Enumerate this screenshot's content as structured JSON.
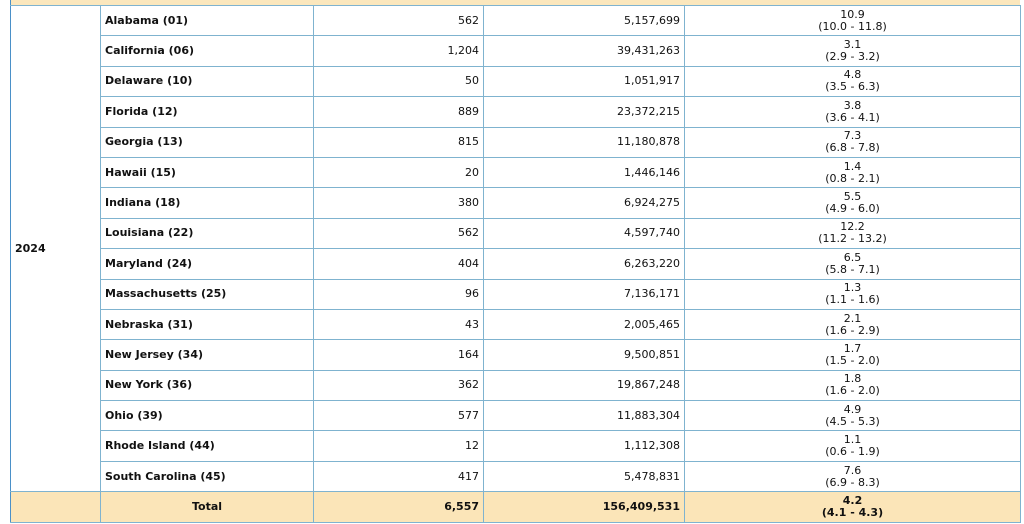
{
  "table": {
    "year": "2024",
    "rows": [
      [
        "Alabama (01)",
        "562",
        "5,157,699",
        "10.9",
        "(10.0 - 11.8)"
      ],
      [
        "California (06)",
        "1,204",
        "39,431,263",
        "3.1",
        "(2.9 - 3.2)"
      ],
      [
        "Delaware (10)",
        "50",
        "1,051,917",
        "4.8",
        "(3.5 - 6.3)"
      ],
      [
        "Florida (12)",
        "889",
        "23,372,215",
        "3.8",
        "(3.6 - 4.1)"
      ],
      [
        "Georgia (13)",
        "815",
        "11,180,878",
        "7.3",
        "(6.8 - 7.8)"
      ],
      [
        "Hawaii (15)",
        "20",
        "1,446,146",
        "1.4",
        "(0.8 - 2.1)"
      ],
      [
        "Indiana (18)",
        "380",
        "6,924,275",
        "5.5",
        "(4.9 - 6.0)"
      ],
      [
        "Louisiana (22)",
        "562",
        "4,597,740",
        "12.2",
        "(11.2 - 13.2)"
      ],
      [
        "Maryland (24)",
        "404",
        "6,263,220",
        "6.5",
        "(5.8 - 7.1)"
      ],
      [
        "Massachusetts (25)",
        "96",
        "7,136,171",
        "1.3",
        "(1.1 - 1.6)"
      ],
      [
        "Nebraska (31)",
        "43",
        "2,005,465",
        "2.1",
        "(1.6 - 2.9)"
      ],
      [
        "New Jersey (34)",
        "164",
        "9,500,851",
        "1.7",
        "(1.5 - 2.0)"
      ],
      [
        "New York (36)",
        "362",
        "19,867,248",
        "1.8",
        "(1.6 - 2.0)"
      ],
      [
        "Ohio (39)",
        "577",
        "11,883,304",
        "4.9",
        "(4.5 - 5.3)"
      ],
      [
        "Rhode Island (44)",
        "12",
        "1,112,308",
        "1.1",
        "(0.6 - 1.9)"
      ],
      [
        "South Carolina (45)",
        "417",
        "5,478,831",
        "7.6",
        "(6.9 - 8.3)"
      ]
    ],
    "total": [
      "Total",
      "6,557",
      "156,409,531",
      "4.2",
      "(4.1 - 4.3)"
    ]
  }
}
